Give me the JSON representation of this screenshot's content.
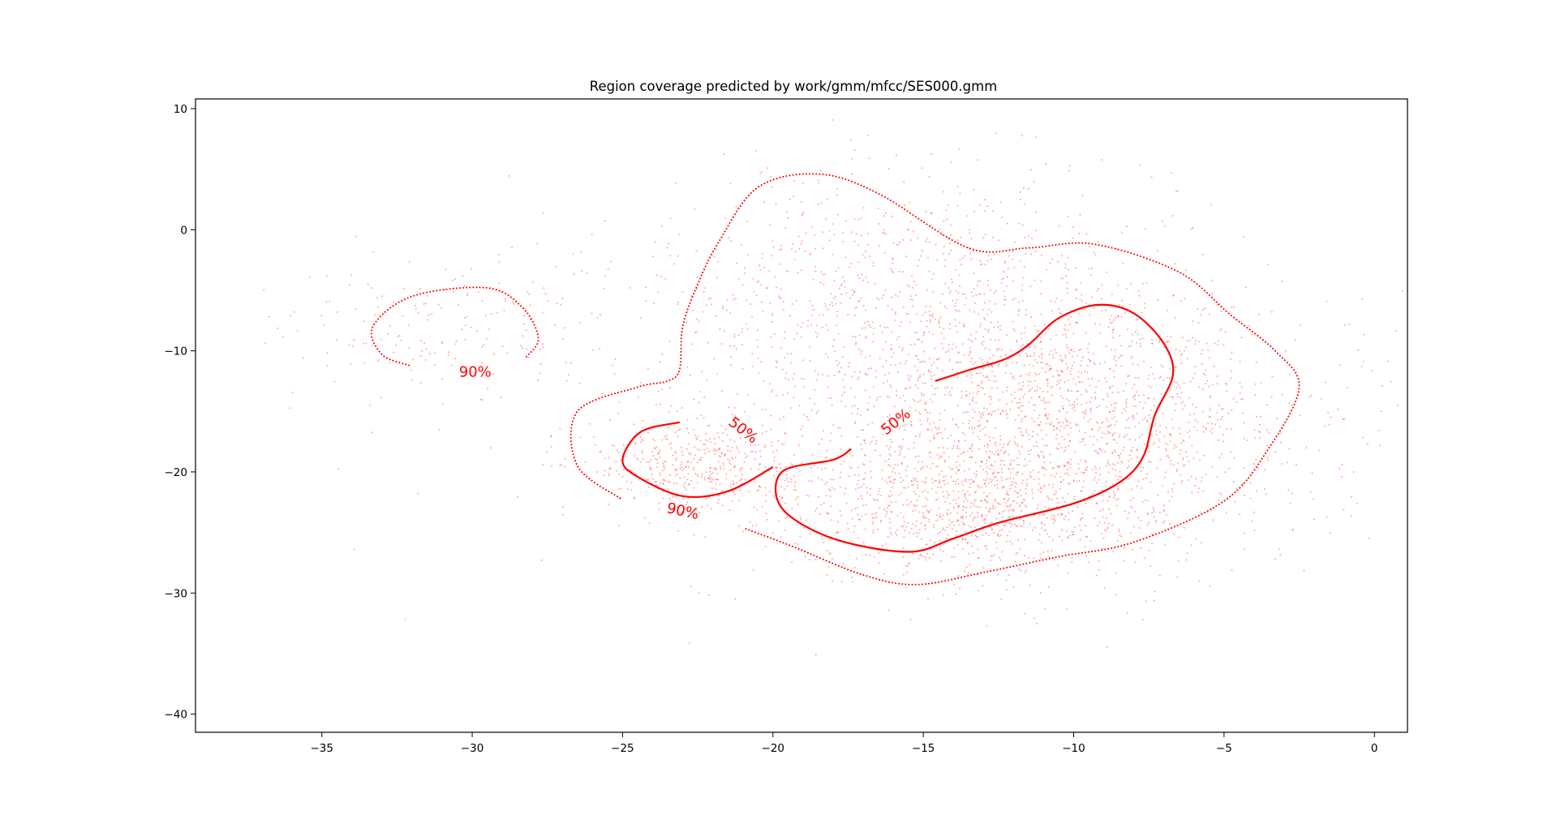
{
  "chart_data": {
    "type": "scatter",
    "title": "Region coverage predicted by work/gmm/mfcc/SES000.gmm",
    "xlabel": "",
    "ylabel": "",
    "xlim": [
      -39.2,
      1.1
    ],
    "ylim": [
      -41.5,
      10.8
    ],
    "xticks": [
      -35,
      -30,
      -25,
      -20,
      -15,
      -10,
      -5,
      0
    ],
    "yticks": [
      10,
      0,
      -10,
      -20,
      -30,
      -40
    ],
    "grid": false,
    "legend": "none",
    "color": "#ff0000",
    "scatter": {
      "name": "samples",
      "n_points": 4200,
      "seed": 7,
      "clusters": [
        {
          "cx": -10.5,
          "cy": -16.0,
          "sx": 4.0,
          "sy": 5.5,
          "w": 0.4
        },
        {
          "cx": -14.0,
          "cy": -23.0,
          "sx": 3.0,
          "sy": 2.8,
          "w": 0.18
        },
        {
          "cx": -16.0,
          "cy": -6.0,
          "sx": 4.5,
          "sy": 5.5,
          "w": 0.22
        },
        {
          "cx": -22.5,
          "cy": -19.5,
          "sx": 1.8,
          "sy": 1.8,
          "w": 0.1
        },
        {
          "cx": -30.5,
          "cy": -8.0,
          "sx": 2.5,
          "sy": 3.0,
          "w": 0.04
        },
        {
          "cx": -14.0,
          "cy": -14.0,
          "sx": 9.0,
          "sy": 8.0,
          "w": 0.06
        }
      ]
    },
    "contours": [
      {
        "level": "50%",
        "style": "solid",
        "points": [
          [
            -14.6,
            -12.5
          ],
          [
            -13.5,
            -11.6
          ],
          [
            -12.3,
            -10.7
          ],
          [
            -11.5,
            -9.5
          ],
          [
            -10.5,
            -7.3
          ],
          [
            -9.2,
            -6.2
          ],
          [
            -8.0,
            -6.9
          ],
          [
            -7.0,
            -9.4
          ],
          [
            -6.7,
            -12.0
          ],
          [
            -7.3,
            -15.3
          ],
          [
            -7.7,
            -18.8
          ],
          [
            -8.5,
            -20.9
          ],
          [
            -10.0,
            -22.6
          ],
          [
            -12.5,
            -24.2
          ],
          [
            -14.0,
            -25.5
          ],
          [
            -15.5,
            -26.6
          ],
          [
            -18.0,
            -25.5
          ],
          [
            -19.7,
            -23.0
          ],
          [
            -19.7,
            -20.0
          ],
          [
            -18.0,
            -19.0
          ],
          [
            -17.4,
            -18.1
          ]
        ]
      },
      {
        "level": "50%",
        "style": "solid",
        "points": [
          [
            -23.1,
            -15.9
          ],
          [
            -24.4,
            -16.7
          ],
          [
            -25.0,
            -19.0
          ],
          [
            -24.5,
            -20.4
          ],
          [
            -23.0,
            -22.0
          ],
          [
            -21.5,
            -21.6
          ],
          [
            -20.0,
            -19.6
          ]
        ]
      },
      {
        "level": "90%",
        "style": "dotted",
        "points": [
          [
            -20.9,
            -24.7
          ],
          [
            -19.4,
            -26.1
          ],
          [
            -17.0,
            -28.5
          ],
          [
            -15.2,
            -29.3
          ],
          [
            -13.0,
            -28.3
          ],
          [
            -10.5,
            -27.0
          ],
          [
            -8.0,
            -25.8
          ],
          [
            -5.0,
            -22.4
          ],
          [
            -3.5,
            -18.0
          ],
          [
            -2.5,
            -13.0
          ],
          [
            -3.3,
            -10.0
          ],
          [
            -4.8,
            -7.0
          ],
          [
            -6.5,
            -3.5
          ],
          [
            -9.3,
            -1.2
          ],
          [
            -11.5,
            -1.5
          ],
          [
            -13.5,
            -1.5
          ],
          [
            -16.5,
            3.0
          ],
          [
            -18.5,
            4.6
          ],
          [
            -20.5,
            3.5
          ],
          [
            -21.8,
            -1.0
          ],
          [
            -22.5,
            -4.5
          ],
          [
            -23.0,
            -8.0
          ],
          [
            -23.1,
            -11.5
          ],
          [
            -23.5,
            -12.5
          ],
          [
            -24.5,
            -13.0
          ],
          [
            -26.5,
            -15.0
          ],
          [
            -26.5,
            -19.5
          ],
          [
            -25.0,
            -22.3
          ]
        ]
      },
      {
        "level": "90%",
        "style": "dotted",
        "points": [
          [
            -32.1,
            -11.2
          ],
          [
            -33.0,
            -10.3
          ],
          [
            -33.3,
            -8.0
          ],
          [
            -32.0,
            -5.5
          ],
          [
            -29.5,
            -4.8
          ],
          [
            -28.3,
            -6.5
          ],
          [
            -27.8,
            -9.0
          ],
          [
            -28.2,
            -10.5
          ]
        ]
      }
    ],
    "contour_labels": [
      {
        "text": "90%",
        "x": -29.9,
        "y": -11.8,
        "angle": 0
      },
      {
        "text": "50%",
        "x": -21.0,
        "y": -16.6,
        "angle": 38
      },
      {
        "text": "50%",
        "x": -15.9,
        "y": -15.9,
        "angle": -38
      },
      {
        "text": "90%",
        "x": -23.0,
        "y": -23.3,
        "angle": 12
      }
    ]
  }
}
